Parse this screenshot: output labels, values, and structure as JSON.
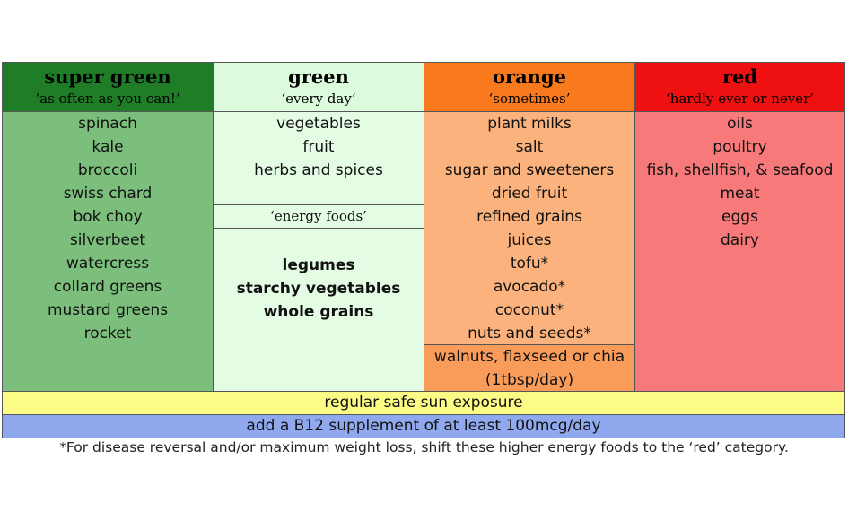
{
  "columns": [
    {
      "title": "super green",
      "subtitle": "‘as often as you can!’",
      "items": [
        "spinach",
        "kale",
        "broccoli",
        "swiss chard",
        "bok choy",
        "silverbeet",
        "watercress",
        "collard greens",
        "mustard greens",
        "rocket"
      ]
    },
    {
      "title": "green",
      "subtitle": "‘every day’",
      "items": [
        "vegetables",
        "fruit",
        "herbs and spices"
      ],
      "section_label": "‘energy foods’",
      "section_items": [
        "legumes",
        "starchy vegetables",
        "whole grains"
      ]
    },
    {
      "title": "orange",
      "subtitle": "‘sometimes’",
      "items": [
        "plant milks",
        "salt",
        "sugar and sweeteners",
        "dried fruit",
        "refined grains",
        "juices",
        "tofu*",
        "avocado*",
        "coconut*",
        "nuts and seeds*"
      ],
      "section_items": [
        "walnuts, flaxseed or chia",
        "(1tbsp/day)"
      ]
    },
    {
      "title": "red",
      "subtitle": "‘hardly ever or never’",
      "items": [
        "oils",
        "poultry",
        "fish, shellfish, & seafood",
        "meat",
        "eggs",
        "dairy"
      ]
    }
  ],
  "bands": [
    "regular safe sun exposure",
    "add a B12 supplement of at least 100mcg/day"
  ],
  "footnote": "*For disease reversal and/or maximum weight loss, shift these higher energy foods to the ‘red’ category."
}
